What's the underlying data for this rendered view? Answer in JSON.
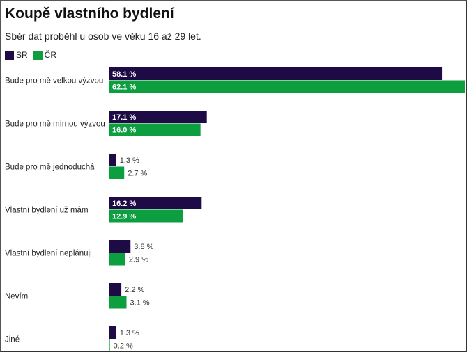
{
  "chart_data": {
    "type": "bar",
    "orientation": "horizontal",
    "title": "Koupě vlastního bydlení",
    "subtitle": "Sběr dat proběhl u osob ve věku 16 až 29 let.",
    "categories": [
      "Bude pro mě velkou výzvou",
      "Bude pro mě mírnou výzvou",
      "Bude pro mě jednoduchá",
      "Vlastní bydlení už mám",
      "Vlastní bydlení neplánuji",
      "Nevím",
      "Jiné"
    ],
    "series": [
      {
        "name": "SR",
        "color": "#1e0a45",
        "values": [
          58.1,
          17.1,
          1.3,
          16.2,
          3.8,
          2.2,
          1.3
        ]
      },
      {
        "name": "ČR",
        "color": "#0c9e3f",
        "values": [
          62.1,
          16.0,
          2.7,
          12.9,
          2.9,
          3.1,
          0.2
        ]
      }
    ],
    "value_suffix": " %",
    "legend": "top-left",
    "grid": false
  }
}
